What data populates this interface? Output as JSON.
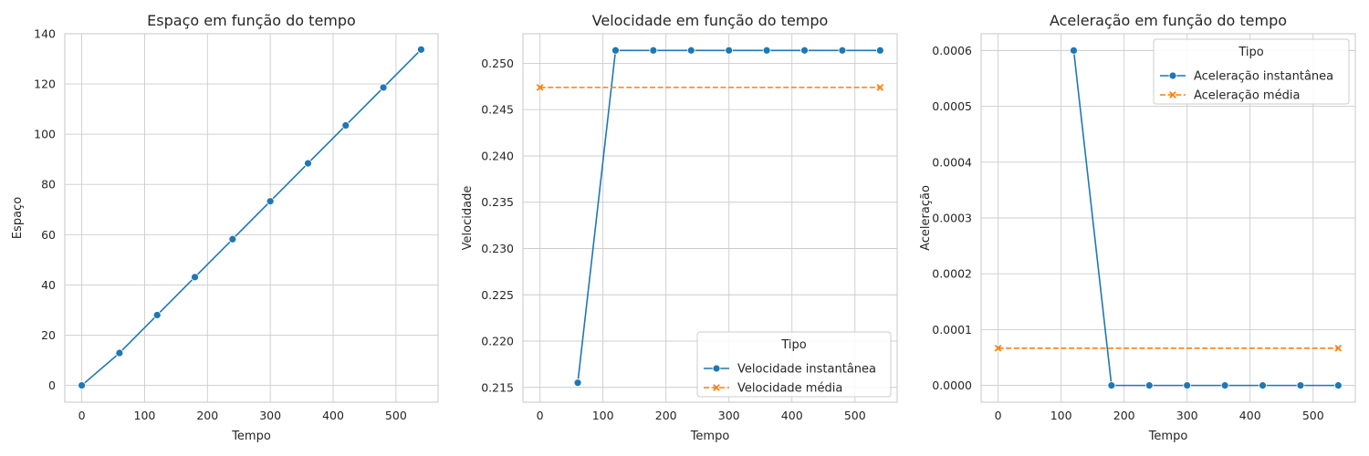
{
  "chart_data": [
    {
      "type": "line",
      "title": "Espaço em função do tempo",
      "xlabel": "Tempo",
      "ylabel": "Espaço",
      "xlim": [
        -27,
        567
      ],
      "ylim": [
        -6.7,
        140
      ],
      "xticks": [
        0,
        100,
        200,
        300,
        400,
        500
      ],
      "yticks": [
        0,
        20,
        40,
        60,
        80,
        100,
        120,
        140
      ],
      "ytick_labels": [
        "0",
        "20",
        "40",
        "60",
        "80",
        "100",
        "120",
        "140"
      ],
      "grid": true,
      "series": [
        {
          "color": "#1f77b4",
          "marker": "circle",
          "dashed": false,
          "x": [
            0,
            60,
            120,
            180,
            240,
            300,
            360,
            420,
            480,
            540
          ],
          "y": [
            0,
            12.9,
            28.0,
            43.1,
            58.2,
            73.3,
            88.4,
            103.5,
            118.6,
            133.7
          ]
        }
      ]
    },
    {
      "type": "line",
      "title": "Velocidade em função do tempo",
      "xlabel": "Tempo",
      "ylabel": "Velocidade",
      "xlim": [
        -27,
        567
      ],
      "ylim": [
        0.2134,
        0.2532
      ],
      "xticks": [
        0,
        100,
        200,
        300,
        400,
        500
      ],
      "yticks": [
        0.215,
        0.22,
        0.225,
        0.23,
        0.235,
        0.24,
        0.245,
        0.25
      ],
      "ytick_labels": [
        "0.215",
        "0.220",
        "0.225",
        "0.230",
        "0.235",
        "0.240",
        "0.245",
        "0.250"
      ],
      "grid": true,
      "legend": {
        "title": "Tipo",
        "position": "lower-right"
      },
      "series": [
        {
          "name": "Velocidade instantânea",
          "color": "#1f77b4",
          "marker": "circle",
          "dashed": false,
          "x": [
            60,
            120,
            180,
            240,
            300,
            360,
            420,
            480,
            540
          ],
          "y": [
            0.2155,
            0.2514,
            0.2514,
            0.2514,
            0.2514,
            0.2514,
            0.2514,
            0.2514,
            0.2514
          ]
        },
        {
          "name": "Velocidade média",
          "color": "#ff7f0e",
          "marker": "x",
          "dashed": true,
          "x": [
            0,
            540
          ],
          "y": [
            0.2474,
            0.2474
          ]
        }
      ]
    },
    {
      "type": "line",
      "title": "Aceleração em função do tempo",
      "xlabel": "Tempo",
      "ylabel": "Aceleração",
      "xlim": [
        -27,
        567
      ],
      "ylim": [
        -3e-05,
        0.00063
      ],
      "xticks": [
        0,
        100,
        200,
        300,
        400,
        500
      ],
      "yticks": [
        0,
        0.0001,
        0.0002,
        0.0003,
        0.0004,
        0.0005,
        0.0006
      ],
      "ytick_labels": [
        "0.0000",
        "0.0001",
        "0.0002",
        "0.0003",
        "0.0004",
        "0.0005",
        "0.0006"
      ],
      "grid": true,
      "legend": {
        "title": "Tipo",
        "position": "upper-right"
      },
      "series": [
        {
          "name": "Aceleração instantânea",
          "color": "#1f77b4",
          "marker": "circle",
          "dashed": false,
          "x": [
            120,
            180,
            240,
            300,
            360,
            420,
            480,
            540
          ],
          "y": [
            0.0006,
            0,
            0,
            0,
            0,
            0,
            0,
            0
          ]
        },
        {
          "name": "Aceleração média",
          "color": "#ff7f0e",
          "marker": "x",
          "dashed": true,
          "x": [
            0,
            540
          ],
          "y": [
            6.67e-05,
            6.67e-05
          ]
        }
      ]
    }
  ]
}
